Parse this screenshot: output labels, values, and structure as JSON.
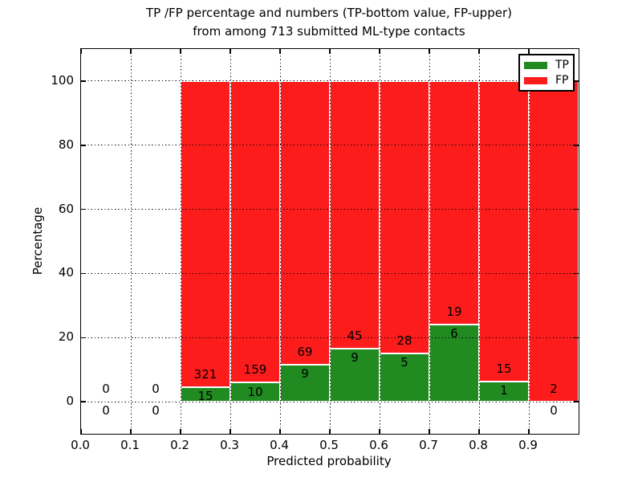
{
  "figure": {
    "title_line1": "TP /FP percentage and numbers (TP-bottom value, FP-upper)",
    "title_line2": "from among 713 submitted ML-type contacts"
  },
  "chart_data": {
    "type": "bar",
    "stacked": true,
    "title": "TP /FP percentage and numbers (TP-bottom value, FP-upper) from among 713 submitted ML-type contacts",
    "xlabel": "Predicted probability",
    "ylabel": "Percentage",
    "total_contacts": 713,
    "xlim": [
      0.0,
      1.0
    ],
    "ylim": [
      -10,
      110
    ],
    "grid": "dotted",
    "grid_color": "#000000",
    "background_color": "#ffffff",
    "xticks": [
      {
        "label": "0.0",
        "value": 0.0
      },
      {
        "label": "0.1",
        "value": 0.1
      },
      {
        "label": "0.2",
        "value": 0.2
      },
      {
        "label": "0.3",
        "value": 0.3
      },
      {
        "label": "0.4",
        "value": 0.4
      },
      {
        "label": "0.5",
        "value": 0.5
      },
      {
        "label": "0.6",
        "value": 0.6
      },
      {
        "label": "0.7",
        "value": 0.7
      },
      {
        "label": "0.8",
        "value": 0.8
      },
      {
        "label": "0.9",
        "value": 0.9
      }
    ],
    "yticks": [
      {
        "label": "0",
        "value": 0
      },
      {
        "label": "20",
        "value": 20
      },
      {
        "label": "40",
        "value": 40
      },
      {
        "label": "60",
        "value": 60
      },
      {
        "label": "80",
        "value": 80
      },
      {
        "label": "100",
        "value": 100
      }
    ],
    "legend": {
      "position": "upper right",
      "entries": [
        {
          "label": "TP",
          "color": "#218a21"
        },
        {
          "label": "FP",
          "color": "#fd1c1c"
        }
      ]
    },
    "series_colors": {
      "tp": "#218a21",
      "fp": "#fd1c1c"
    },
    "bins": [
      {
        "range": [
          0.0,
          0.1
        ],
        "tp_count": 0,
        "fp_count": 0,
        "tp_pct": 0.0,
        "fp_pct": 0.0
      },
      {
        "range": [
          0.1,
          0.2
        ],
        "tp_count": 0,
        "fp_count": 0,
        "tp_pct": 0.0,
        "fp_pct": 0.0
      },
      {
        "range": [
          0.2,
          0.3
        ],
        "tp_count": 15,
        "fp_count": 321,
        "tp_pct": 4.46,
        "fp_pct": 95.54
      },
      {
        "range": [
          0.3,
          0.4
        ],
        "tp_count": 10,
        "fp_count": 159,
        "tp_pct": 5.92,
        "fp_pct": 94.08
      },
      {
        "range": [
          0.4,
          0.5
        ],
        "tp_count": 9,
        "fp_count": 69,
        "tp_pct": 11.54,
        "fp_pct": 88.46
      },
      {
        "range": [
          0.5,
          0.6
        ],
        "tp_count": 9,
        "fp_count": 45,
        "tp_pct": 16.67,
        "fp_pct": 83.33
      },
      {
        "range": [
          0.6,
          0.7
        ],
        "tp_count": 5,
        "fp_count": 28,
        "tp_pct": 15.15,
        "fp_pct": 84.85
      },
      {
        "range": [
          0.7,
          0.8
        ],
        "tp_count": 6,
        "fp_count": 19,
        "tp_pct": 24.0,
        "fp_pct": 76.0
      },
      {
        "range": [
          0.8,
          0.9
        ],
        "tp_count": 1,
        "fp_count": 15,
        "tp_pct": 6.25,
        "fp_pct": 93.75
      },
      {
        "range": [
          0.9,
          1.0
        ],
        "tp_count": 0,
        "fp_count": 2,
        "tp_pct": 0.0,
        "fp_pct": 100.0
      }
    ]
  }
}
